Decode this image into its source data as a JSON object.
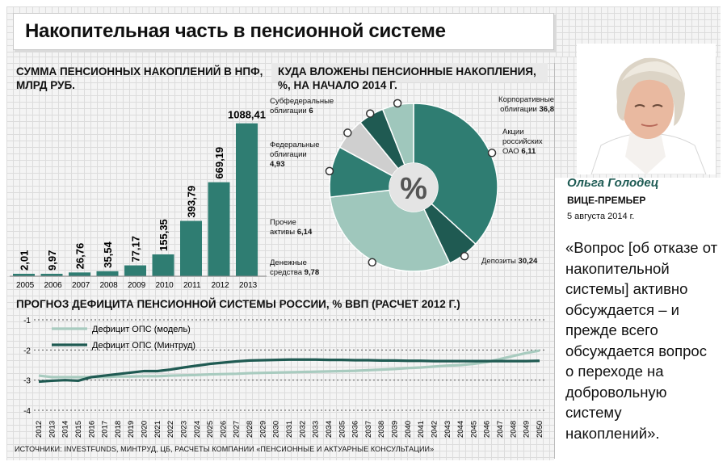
{
  "title": "Накопительная часть в пенсионной системе",
  "colors": {
    "dark_teal": "#2f7d72",
    "deep_teal": "#1f5a52",
    "light_teal": "#9fc7bc",
    "grey": "#c9c9c9",
    "accent_text": "#1e5b54"
  },
  "pension_savings": {
    "title": "СУММА ПЕНСИОННЫХ НАКОПЛЕНИЙ В НПФ, МЛРД РУБ.",
    "chart_data": {
      "type": "bar",
      "categories": [
        "2005",
        "2006",
        "2007",
        "2008",
        "2009",
        "2010",
        "2011",
        "2012",
        "2013"
      ],
      "values": [
        2.01,
        9.97,
        26.76,
        35.54,
        77.17,
        155.35,
        393.79,
        669.19,
        1088.41
      ],
      "value_labels": [
        "2,01",
        "9,97",
        "26,76",
        "35,54",
        "77,17",
        "155,35",
        "393,79",
        "669,19",
        "1088,41"
      ],
      "ylim": [
        0,
        1150
      ]
    }
  },
  "investments": {
    "title": "КУДА ВЛОЖЕНЫ ПЕНСИОННЫЕ НАКОПЛЕНИЯ, %, НА НАЧАЛО 2014 Г.",
    "center_label": "%",
    "chart_data": {
      "type": "pie",
      "slices": [
        {
          "name": "Корпоративные облигации",
          "value": 36.8,
          "value_label": "36,8",
          "color": "#2f7d72"
        },
        {
          "name": "Акции российских ОАО",
          "value": 6.11,
          "value_label": "6,11",
          "color": "#1f5a52"
        },
        {
          "name": "Депозиты",
          "value": 30.24,
          "value_label": "30,24",
          "color": "#9fc7bc"
        },
        {
          "name": "Денежные средства",
          "value": 9.78,
          "value_label": "9,78",
          "color": "#2f7d72"
        },
        {
          "name": "Прочие активы",
          "value": 6.14,
          "value_label": "6,14",
          "color": "#cfcfcf"
        },
        {
          "name": "Федеральные облигации",
          "value": 4.93,
          "value_label": "4,93",
          "color": "#1f5a52"
        },
        {
          "name": "Субфедеральные облигации",
          "value": 6,
          "value_label": "6",
          "color": "#9fc7bc"
        }
      ]
    },
    "labels": {
      "corp": {
        "name": "Корпоративные облигации",
        "value": "36,8"
      },
      "stocks": {
        "name1": "Акции",
        "name2": "российских",
        "name3": "ОАО",
        "value": "6,11"
      },
      "deposits": {
        "name": "Депозиты",
        "value": "30,24"
      },
      "cash": {
        "name1": "Денежные",
        "name2": "средства",
        "value": "9,78"
      },
      "other": {
        "name1": "Прочие",
        "name2": "активы",
        "value": "6,14"
      },
      "federal": {
        "name1": "Федеральные",
        "name2": "облигации",
        "value": "4,93"
      },
      "subfederal": {
        "name1": "Субфедеральные",
        "name2": "облигации",
        "value": "6"
      }
    }
  },
  "deficit": {
    "title": "ПРОГНОЗ ДЕФИЦИТА ПЕНСИОННОЙ СИСТЕМЫ РОССИИ, % ВВП (РАСЧЕТ 2012 Г.)",
    "chart_data": {
      "type": "line",
      "x": [
        2012,
        2013,
        2014,
        2015,
        2016,
        2017,
        2018,
        2019,
        2020,
        2021,
        2022,
        2023,
        2024,
        2025,
        2026,
        2027,
        2028,
        2029,
        2030,
        2031,
        2032,
        2033,
        2034,
        2035,
        2036,
        2037,
        2038,
        2039,
        2040,
        2041,
        2042,
        2043,
        2044,
        2045,
        2046,
        2047,
        2048,
        2049,
        2050
      ],
      "yticks": [
        "-1",
        "-2",
        "-3",
        "-4"
      ],
      "ylim": [
        -4,
        -1
      ],
      "series": [
        {
          "name": "Дефицит ОПС (модель)",
          "color": "#a8cbbf",
          "values": [
            -2.85,
            -2.9,
            -2.9,
            -2.9,
            -2.9,
            -2.9,
            -2.88,
            -2.88,
            -2.87,
            -2.87,
            -2.85,
            -2.84,
            -2.83,
            -2.81,
            -2.8,
            -2.79,
            -2.77,
            -2.76,
            -2.75,
            -2.74,
            -2.73,
            -2.72,
            -2.71,
            -2.7,
            -2.69,
            -2.67,
            -2.65,
            -2.63,
            -2.6,
            -2.58,
            -2.55,
            -2.52,
            -2.5,
            -2.46,
            -2.4,
            -2.3,
            -2.2,
            -2.1,
            -2.02
          ]
        },
        {
          "name": "Дефицит ОПС (Минтруд)",
          "color": "#1f5a52",
          "values": [
            -3.05,
            -3.02,
            -3.0,
            -3.02,
            -2.9,
            -2.85,
            -2.8,
            -2.75,
            -2.7,
            -2.7,
            -2.65,
            -2.58,
            -2.52,
            -2.46,
            -2.42,
            -2.38,
            -2.35,
            -2.34,
            -2.33,
            -2.32,
            -2.32,
            -2.32,
            -2.33,
            -2.33,
            -2.34,
            -2.34,
            -2.35,
            -2.35,
            -2.36,
            -2.36,
            -2.37,
            -2.37,
            -2.37,
            -2.37,
            -2.37,
            -2.37,
            -2.37,
            -2.37,
            -2.36
          ]
        }
      ]
    }
  },
  "person": {
    "name": "Ольга Голодец",
    "role": "ВИЦЕ-ПРЕМЬЕР",
    "date": "5 августа 2014 г.",
    "quote": "«Вопрос [об отказе от накопительной системы] активно обсуждается – и прежде всего обсуждается вопрос о переходе на добровольную систему накоплений»."
  },
  "source": "ИСТОЧНИКИ: INVESTFUNDS, МИНТРУД, ЦБ, РАСЧЕТЫ КОМПАНИИ «ПЕНСИОННЫЕ И АКТУАРНЫЕ КОНСУЛЬТАЦИИ»"
}
